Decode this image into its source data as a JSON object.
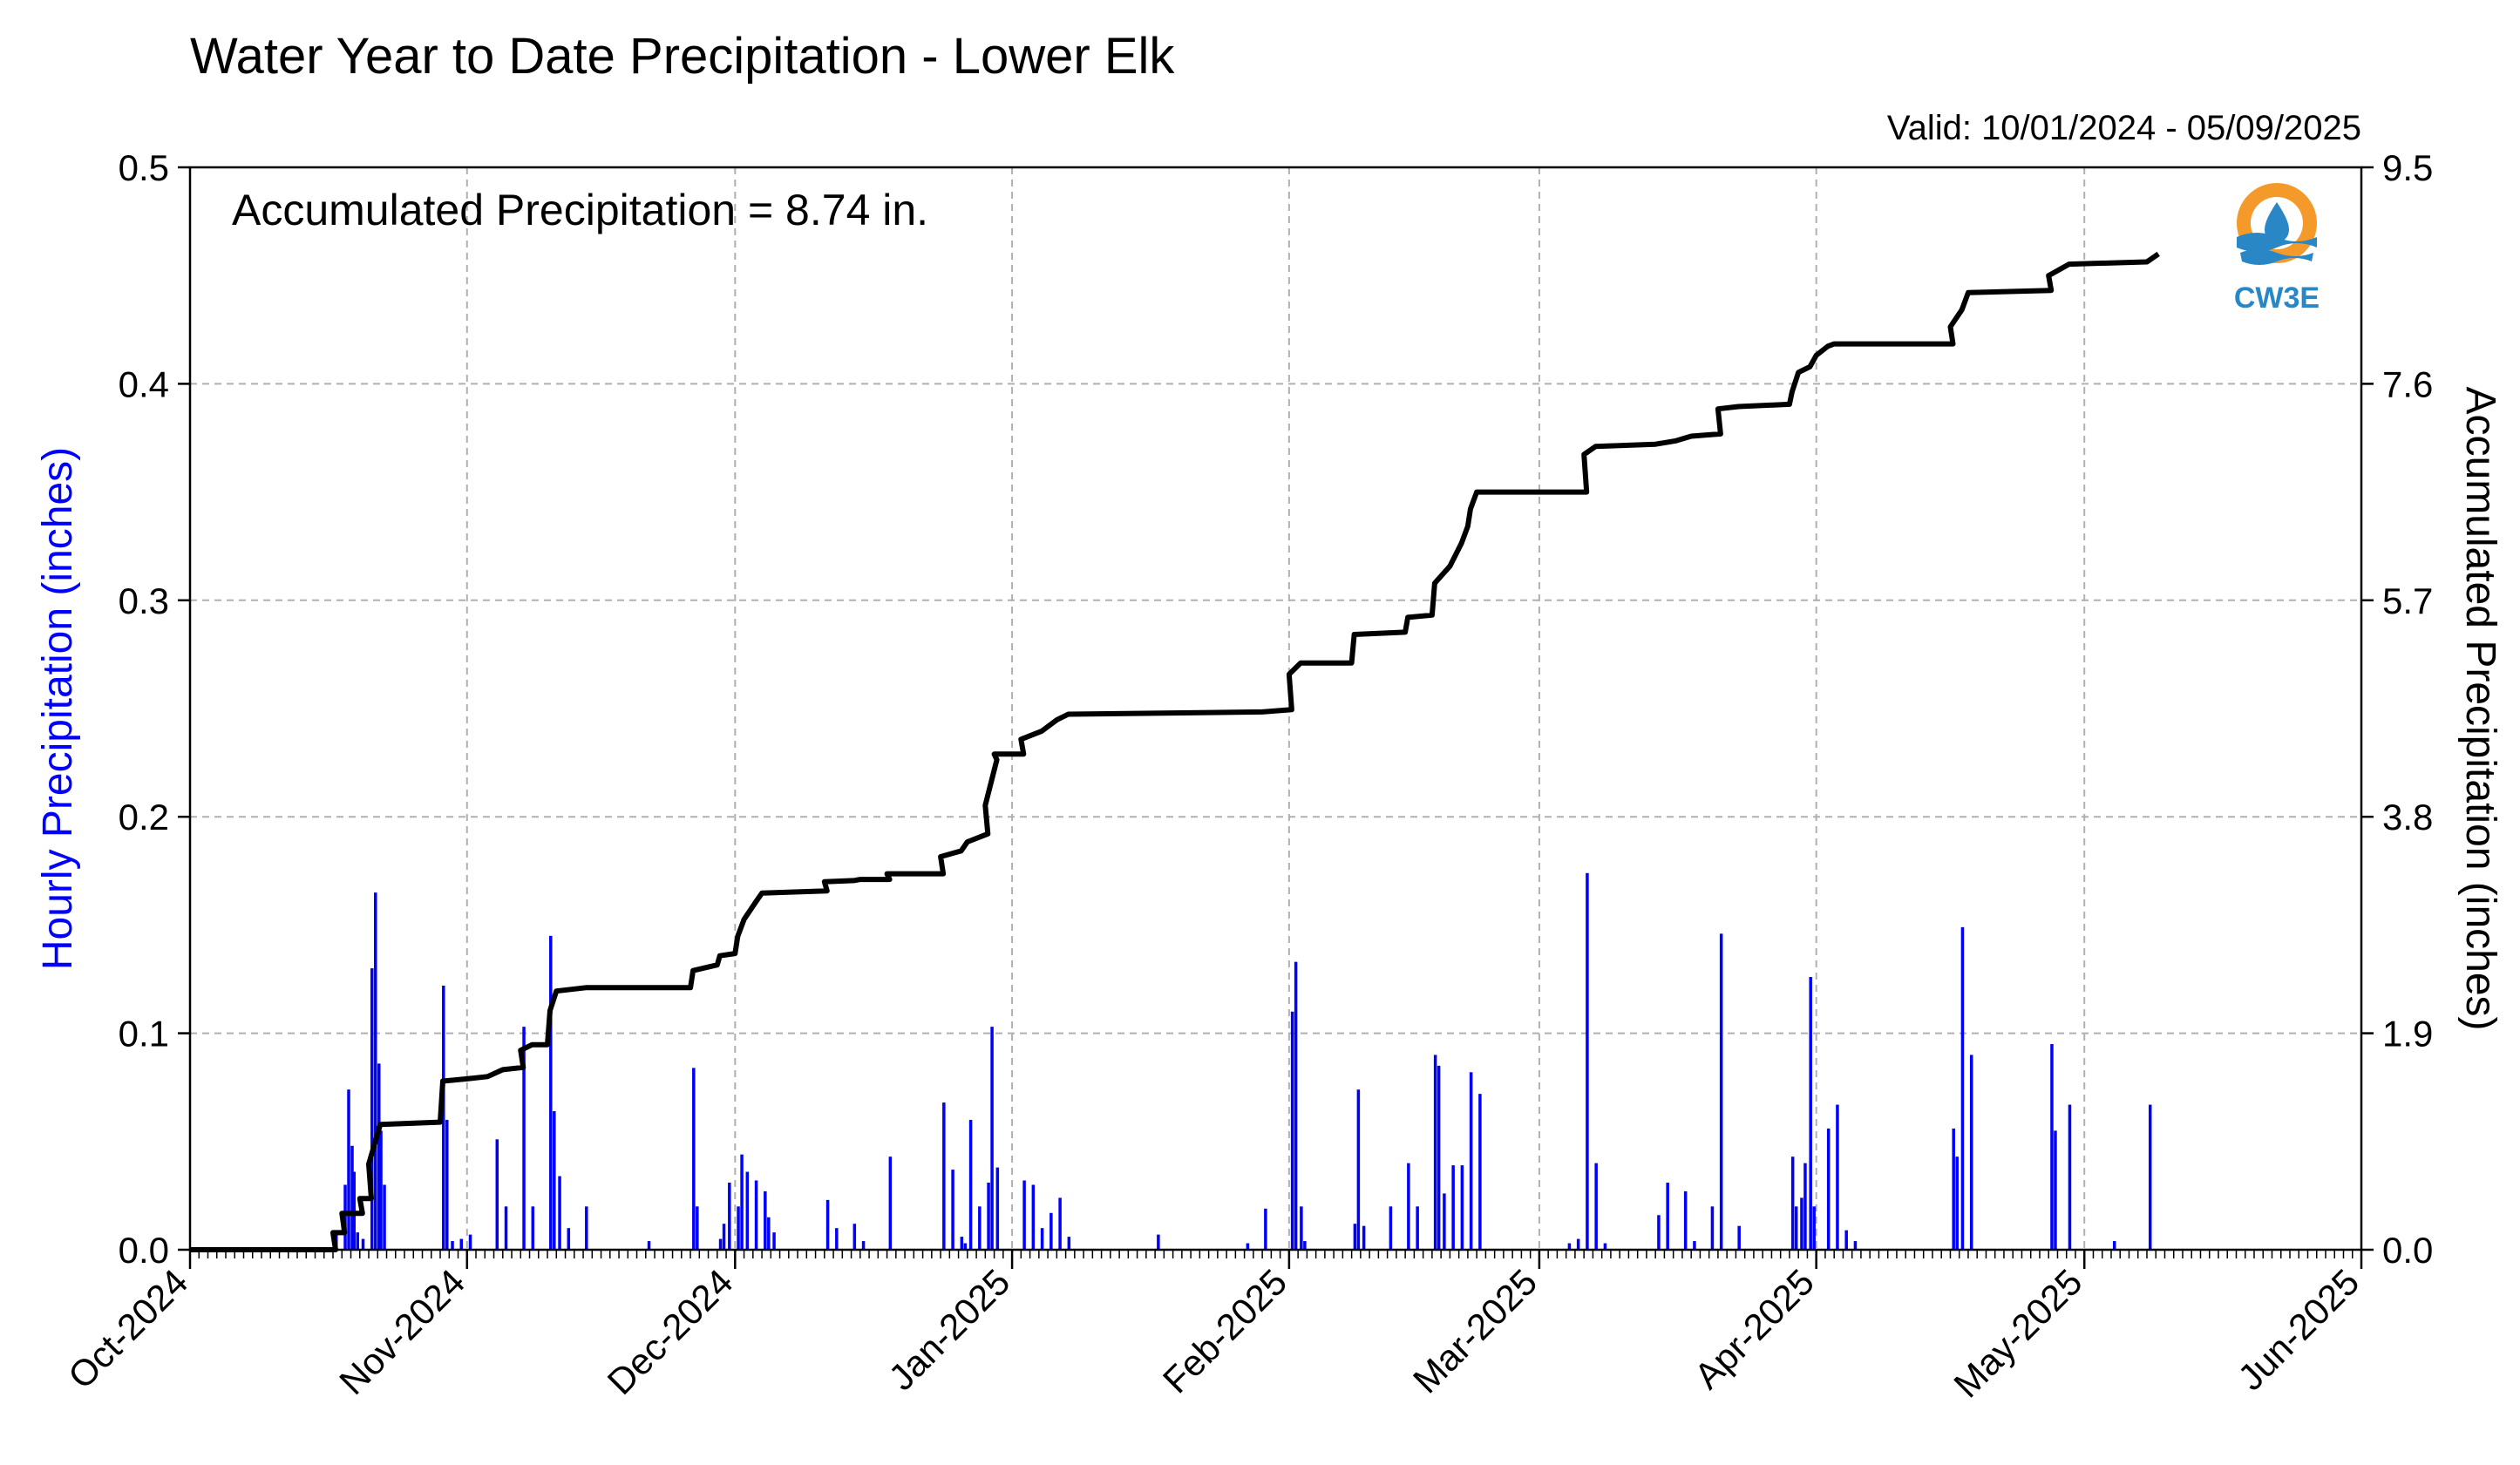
{
  "chart_data": {
    "type": "bar",
    "title": "Water Year to Date Precipitation - Lower Elk",
    "valid_label": "Valid: 10/01/2024 - 05/09/2025",
    "annotation": "Accumulated Precipitation = 8.74 in.",
    "logo_text": "CW3E",
    "ylabel_left": "Hourly Precipitation (inches)",
    "ylabel_right": "Accumulated Precipitation (inches)",
    "xlim": [
      "2024-10-01",
      "2025-06-01"
    ],
    "ylim_left": [
      0,
      0.5
    ],
    "ylim_right": [
      0,
      9.5
    ],
    "yticks_left": [
      "0.0",
      "0.1",
      "0.2",
      "0.3",
      "0.4",
      "0.5"
    ],
    "yticks_right": [
      "0.0",
      "1.9",
      "3.8",
      "5.7",
      "7.6",
      "9.5"
    ],
    "xticks": [
      {
        "date": "2024-10-01",
        "label": "Oct-2024"
      },
      {
        "date": "2024-11-01",
        "label": "Nov-2024"
      },
      {
        "date": "2024-12-01",
        "label": "Dec-2024"
      },
      {
        "date": "2025-01-01",
        "label": "Jan-2025"
      },
      {
        "date": "2025-02-01",
        "label": "Feb-2025"
      },
      {
        "date": "2025-03-01",
        "label": "Mar-2025"
      },
      {
        "date": "2025-04-01",
        "label": "Apr-2025"
      },
      {
        "date": "2025-05-01",
        "label": "May-2025"
      },
      {
        "date": "2025-06-01",
        "label": "Jun-2025"
      }
    ],
    "grid": true,
    "colors": {
      "hourly": "#0000ff",
      "accumulated": "#000000",
      "grid": "#b0b0b0",
      "logo_orange": "#f39a2b",
      "logo_blue": "#2a87c6"
    },
    "series": [
      {
        "name": "Hourly Precipitation (inches)",
        "axis": "left",
        "type": "bar",
        "points": [
          [
            "2024-10-17",
            0.007
          ],
          [
            "2024-10-18",
            0.03
          ],
          [
            "2024-10-18",
            0.074
          ],
          [
            "2024-10-18",
            0.048
          ],
          [
            "2024-10-19",
            0.036
          ],
          [
            "2024-10-19",
            0.008
          ],
          [
            "2024-10-20",
            0.005
          ],
          [
            "2024-10-21",
            0.13
          ],
          [
            "2024-10-21",
            0.165
          ],
          [
            "2024-10-21",
            0.086
          ],
          [
            "2024-10-22",
            0.055
          ],
          [
            "2024-10-22",
            0.03
          ],
          [
            "2024-10-29",
            0.122
          ],
          [
            "2024-10-29",
            0.06
          ],
          [
            "2024-10-30",
            0.004
          ],
          [
            "2024-10-31",
            0.005
          ],
          [
            "2024-11-01",
            0.007
          ],
          [
            "2024-11-04",
            0.051
          ],
          [
            "2024-11-05",
            0.02
          ],
          [
            "2024-11-07",
            0.103
          ],
          [
            "2024-11-08",
            0.02
          ],
          [
            "2024-11-10",
            0.145
          ],
          [
            "2024-11-10",
            0.064
          ],
          [
            "2024-11-11",
            0.034
          ],
          [
            "2024-11-12",
            0.01
          ],
          [
            "2024-11-14",
            0.02
          ],
          [
            "2024-11-21",
            0.004
          ],
          [
            "2024-11-26",
            0.084
          ],
          [
            "2024-11-26",
            0.02
          ],
          [
            "2024-11-29",
            0.005
          ],
          [
            "2024-11-29",
            0.012
          ],
          [
            "2024-11-30",
            0.031
          ],
          [
            "2024-12-01",
            0.02
          ],
          [
            "2024-12-01",
            0.044
          ],
          [
            "2024-12-02",
            0.036
          ],
          [
            "2024-12-03",
            0.032
          ],
          [
            "2024-12-04",
            0.027
          ],
          [
            "2024-12-04",
            0.015
          ],
          [
            "2024-12-05",
            0.008
          ],
          [
            "2024-12-11",
            0.023
          ],
          [
            "2024-12-12",
            0.01
          ],
          [
            "2024-12-14",
            0.012
          ],
          [
            "2024-12-15",
            0.004
          ],
          [
            "2024-12-18",
            0.043
          ],
          [
            "2024-12-24",
            0.068
          ],
          [
            "2024-12-25",
            0.037
          ],
          [
            "2024-12-26",
            0.006
          ],
          [
            "2024-12-26",
            0.003
          ],
          [
            "2024-12-27",
            0.06
          ],
          [
            "2024-12-28",
            0.02
          ],
          [
            "2024-12-29",
            0.031
          ],
          [
            "2024-12-29",
            0.103
          ],
          [
            "2024-12-30",
            0.038
          ],
          [
            "2025-01-02",
            0.032
          ],
          [
            "2025-01-03",
            0.03
          ],
          [
            "2025-01-04",
            0.01
          ],
          [
            "2025-01-05",
            0.017
          ],
          [
            "2025-01-06",
            0.024
          ],
          [
            "2025-01-07",
            0.006
          ],
          [
            "2025-01-17",
            0.007
          ],
          [
            "2025-01-27",
            0.003
          ],
          [
            "2025-01-29",
            0.019
          ],
          [
            "2025-02-01",
            0.11
          ],
          [
            "2025-02-01",
            0.133
          ],
          [
            "2025-02-02",
            0.02
          ],
          [
            "2025-02-02",
            0.004
          ],
          [
            "2025-02-08",
            0.012
          ],
          [
            "2025-02-08",
            0.074
          ],
          [
            "2025-02-09",
            0.011
          ],
          [
            "2025-02-12",
            0.02
          ],
          [
            "2025-02-14",
            0.04
          ],
          [
            "2025-02-15",
            0.02
          ],
          [
            "2025-02-17",
            0.09
          ],
          [
            "2025-02-17",
            0.085
          ],
          [
            "2025-02-18",
            0.026
          ],
          [
            "2025-02-19",
            0.039
          ],
          [
            "2025-02-20",
            0.039
          ],
          [
            "2025-02-21",
            0.082
          ],
          [
            "2025-02-22",
            0.072
          ],
          [
            "2025-03-04",
            0.003
          ],
          [
            "2025-03-05",
            0.005
          ],
          [
            "2025-03-06",
            0.174
          ],
          [
            "2025-03-07",
            0.04
          ],
          [
            "2025-03-08",
            0.003
          ],
          [
            "2025-03-14",
            0.016
          ],
          [
            "2025-03-15",
            0.031
          ],
          [
            "2025-03-17",
            0.027
          ],
          [
            "2025-03-18",
            0.004
          ],
          [
            "2025-03-20",
            0.02
          ],
          [
            "2025-03-21",
            0.146
          ],
          [
            "2025-03-23",
            0.011
          ],
          [
            "2025-03-29",
            0.043
          ],
          [
            "2025-03-29",
            0.02
          ],
          [
            "2025-03-30",
            0.024
          ],
          [
            "2025-03-30",
            0.04
          ],
          [
            "2025-03-31",
            0.126
          ],
          [
            "2025-03-31",
            0.02
          ],
          [
            "2025-04-02",
            0.056
          ],
          [
            "2025-04-03",
            0.067
          ],
          [
            "2025-04-04",
            0.009
          ],
          [
            "2025-04-05",
            0.004
          ],
          [
            "2025-04-16",
            0.056
          ],
          [
            "2025-04-16",
            0.043
          ],
          [
            "2025-04-17",
            0.149
          ],
          [
            "2025-04-18",
            0.09
          ],
          [
            "2025-04-27",
            0.095
          ],
          [
            "2025-04-27",
            0.055
          ],
          [
            "2025-04-29",
            0.067
          ],
          [
            "2025-05-04",
            0.004
          ],
          [
            "2025-05-08",
            0.067
          ]
        ]
      },
      {
        "name": "Accumulated Precipitation (inches)",
        "axis": "right",
        "type": "line",
        "points": [
          [
            "2024-10-01",
            0
          ],
          [
            "2024-10-17",
            0
          ],
          [
            "2024-10-17",
            0.15
          ],
          [
            "2024-10-18",
            0.15
          ],
          [
            "2024-10-18",
            0.32
          ],
          [
            "2024-10-20",
            0.32
          ],
          [
            "2024-10-20",
            0.45
          ],
          [
            "2024-10-21",
            0.45
          ],
          [
            "2024-10-21",
            0.75
          ],
          [
            "2024-10-22",
            1.1
          ],
          [
            "2024-10-29",
            1.12
          ],
          [
            "2024-10-29",
            1.48
          ],
          [
            "2024-11-01",
            1.5
          ],
          [
            "2024-11-03",
            1.52
          ],
          [
            "2024-11-05",
            1.58
          ],
          [
            "2024-11-07",
            1.6
          ],
          [
            "2024-11-07",
            1.75
          ],
          [
            "2024-11-08",
            1.8
          ],
          [
            "2024-11-10",
            1.8
          ],
          [
            "2024-11-10",
            2.1
          ],
          [
            "2024-11-11",
            2.27
          ],
          [
            "2024-11-14",
            2.3
          ],
          [
            "2024-11-26",
            2.3
          ],
          [
            "2024-11-26",
            2.45
          ],
          [
            "2024-11-29",
            2.5
          ],
          [
            "2024-11-29",
            2.58
          ],
          [
            "2024-12-01",
            2.6
          ],
          [
            "2024-12-01",
            2.75
          ],
          [
            "2024-12-02",
            2.9
          ],
          [
            "2024-12-03",
            3.05
          ],
          [
            "2024-12-04",
            3.13
          ],
          [
            "2024-12-11",
            3.15
          ],
          [
            "2024-12-11",
            3.23
          ],
          [
            "2024-12-14",
            3.24
          ],
          [
            "2024-12-15",
            3.25
          ],
          [
            "2024-12-18",
            3.25
          ],
          [
            "2024-12-18",
            3.3
          ],
          [
            "2024-12-24",
            3.3
          ],
          [
            "2024-12-24",
            3.45
          ],
          [
            "2024-12-26",
            3.5
          ],
          [
            "2024-12-27",
            3.58
          ],
          [
            "2024-12-29",
            3.65
          ],
          [
            "2024-12-29",
            3.9
          ],
          [
            "2024-12-30",
            4.3
          ],
          [
            "2024-12-30",
            4.35
          ],
          [
            "2025-01-02",
            4.35
          ],
          [
            "2025-01-02",
            4.48
          ],
          [
            "2025-01-04",
            4.55
          ],
          [
            "2025-01-06",
            4.65
          ],
          [
            "2025-01-07",
            4.7
          ],
          [
            "2025-01-29",
            4.72
          ],
          [
            "2025-02-01",
            4.74
          ],
          [
            "2025-02-01",
            5.05
          ],
          [
            "2025-02-02",
            5.15
          ],
          [
            "2025-02-08",
            5.15
          ],
          [
            "2025-02-08",
            5.4
          ],
          [
            "2025-02-14",
            5.42
          ],
          [
            "2025-02-14",
            5.55
          ],
          [
            "2025-02-17",
            5.57
          ],
          [
            "2025-02-17",
            5.85
          ],
          [
            "2025-02-19",
            6.0
          ],
          [
            "2025-02-20",
            6.2
          ],
          [
            "2025-02-21",
            6.35
          ],
          [
            "2025-02-21",
            6.5
          ],
          [
            "2025-02-22",
            6.65
          ],
          [
            "2025-03-06",
            6.65
          ],
          [
            "2025-03-06",
            6.98
          ],
          [
            "2025-03-07",
            7.05
          ],
          [
            "2025-03-14",
            7.07
          ],
          [
            "2025-03-16",
            7.1
          ],
          [
            "2025-03-18",
            7.14
          ],
          [
            "2025-03-21",
            7.16
          ],
          [
            "2025-03-21",
            7.38
          ],
          [
            "2025-03-23",
            7.4
          ],
          [
            "2025-03-29",
            7.42
          ],
          [
            "2025-03-29",
            7.53
          ],
          [
            "2025-03-30",
            7.7
          ],
          [
            "2025-03-31",
            7.75
          ],
          [
            "2025-04-01",
            7.85
          ],
          [
            "2025-04-02",
            7.93
          ],
          [
            "2025-04-03",
            7.95
          ],
          [
            "2025-04-16",
            7.95
          ],
          [
            "2025-04-16",
            8.1
          ],
          [
            "2025-04-17",
            8.25
          ],
          [
            "2025-04-18",
            8.4
          ],
          [
            "2025-04-27",
            8.42
          ],
          [
            "2025-04-27",
            8.55
          ],
          [
            "2025-04-29",
            8.65
          ],
          [
            "2025-05-08",
            8.67
          ],
          [
            "2025-05-09",
            8.74
          ]
        ]
      }
    ]
  }
}
